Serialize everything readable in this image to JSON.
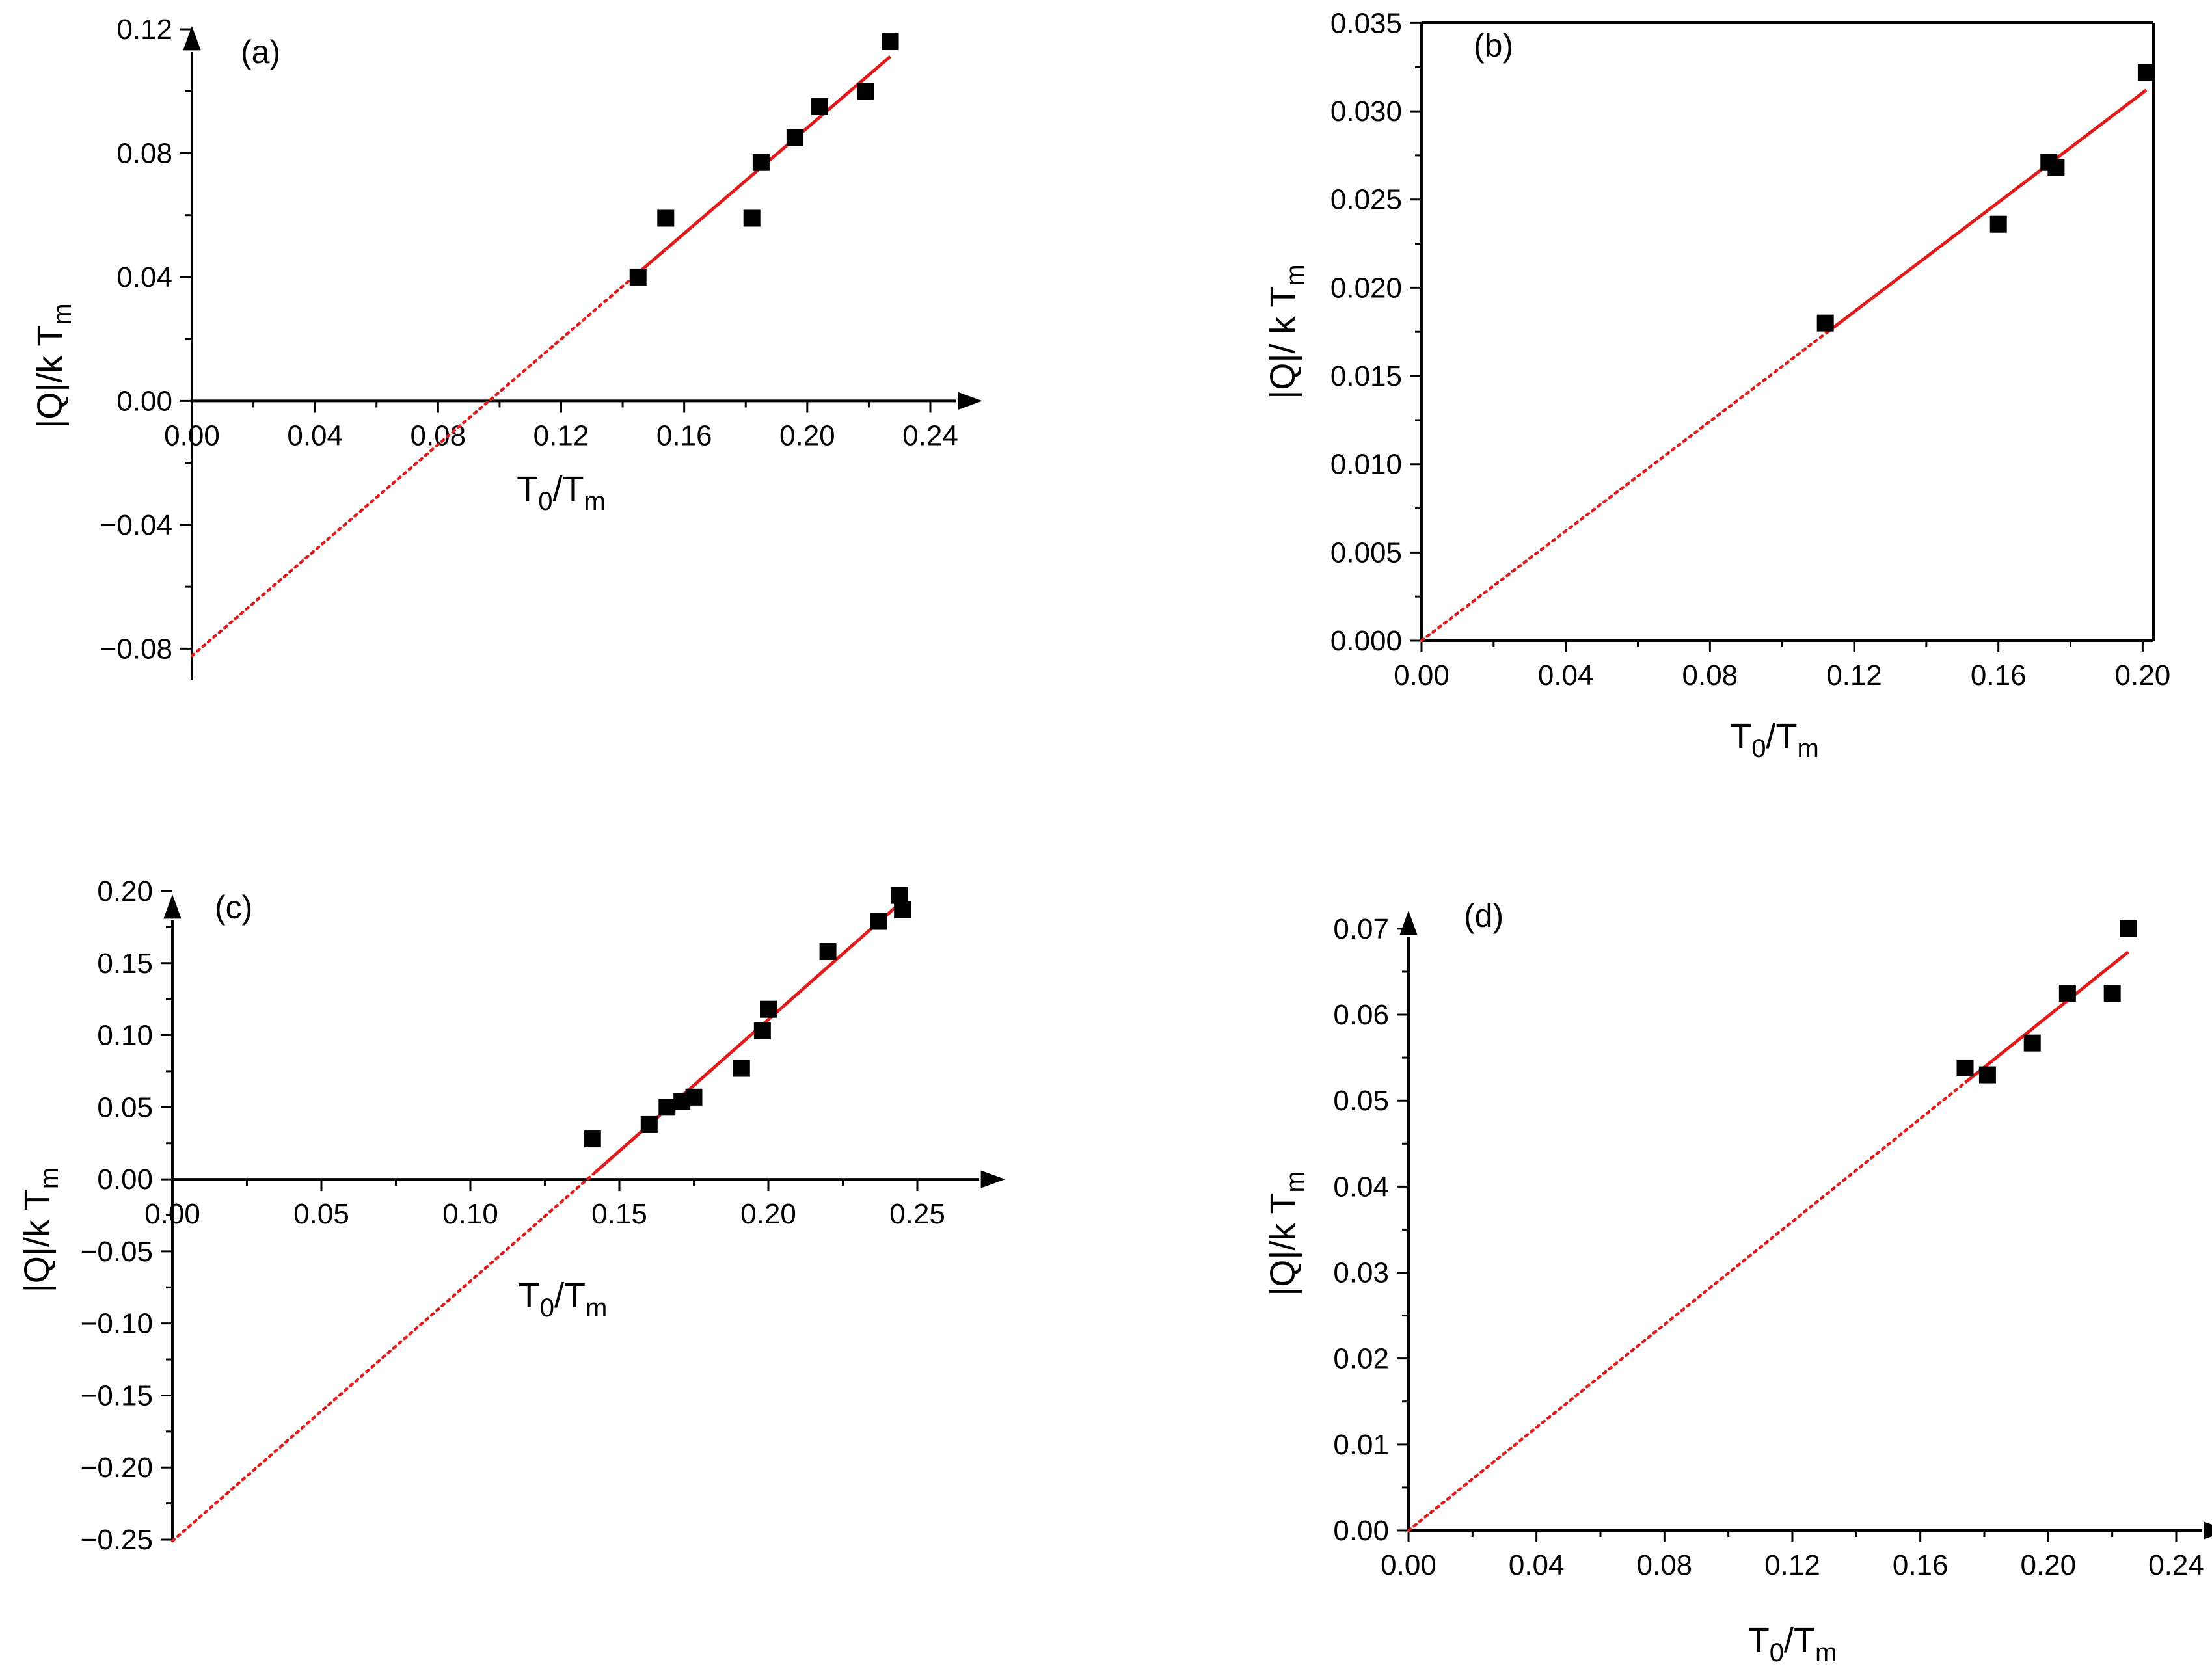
{
  "chart_data": [
    {
      "id": "a",
      "type": "scatter",
      "label": "(a)",
      "xlabel": {
        "main": "T",
        "sub1": "0",
        "mid": "/T",
        "sub2": "m"
      },
      "ylabel": {
        "main": "|Q|/k T",
        "sub": "m"
      },
      "xlim": [
        0,
        0.24
      ],
      "ylim": [
        -0.09,
        0.12
      ],
      "xticks": [
        0.0,
        0.04,
        0.08,
        0.12,
        0.16,
        0.2,
        0.24
      ],
      "xtick_labels": [
        "0.00",
        "0.04",
        "0.08",
        "0.12",
        "0.16",
        "0.20",
        "0.24"
      ],
      "yticks": [
        -0.08,
        -0.04,
        0.0,
        0.04,
        0.08,
        0.12
      ],
      "ytick_labels": [
        "−0.08",
        "−0.04",
        "0.00",
        "0.04",
        "0.08",
        "0.12"
      ],
      "series": [
        {
          "type": "scatter",
          "color": "#000000",
          "x": [
            0.145,
            0.154,
            0.182,
            0.185,
            0.196,
            0.204,
            0.219,
            0.227
          ],
          "y": [
            0.04,
            0.059,
            0.059,
            0.077,
            0.085,
            0.095,
            0.1,
            0.116
          ]
        },
        {
          "type": "line",
          "style": "solid",
          "color": "#e01b1b",
          "x": [
            0.145,
            0.227
          ],
          "y": [
            0.0413,
            0.1112
          ]
        },
        {
          "type": "line",
          "style": "dotted",
          "color": "#e01b1b",
          "x": [
            0.0,
            0.145
          ],
          "y": [
            -0.0823,
            0.0413
          ]
        }
      ]
    },
    {
      "id": "b",
      "type": "scatter",
      "label": "(b)",
      "xlabel": {
        "main": "T",
        "sub1": "0",
        "mid": "/T",
        "sub2": "m"
      },
      "ylabel": {
        "main": "|Q|/ k T",
        "sub": "m"
      },
      "xlim": [
        0,
        0.203
      ],
      "ylim": [
        0,
        0.0352
      ],
      "xticks": [
        0.0,
        0.04,
        0.08,
        0.12,
        0.16,
        0.2
      ],
      "xtick_labels": [
        "0.00",
        "0.04",
        "0.08",
        "0.12",
        "0.16",
        "0.20"
      ],
      "yticks": [
        0.0,
        0.005,
        0.01,
        0.015,
        0.02,
        0.025,
        0.03,
        0.035
      ],
      "ytick_labels": [
        "0.000",
        "0.005",
        "0.010",
        "0.015",
        "0.020",
        "0.025",
        "0.030",
        "0.035"
      ],
      "series": [
        {
          "type": "scatter",
          "color": "#000000",
          "x": [
            0.112,
            0.16,
            0.174,
            0.176,
            0.201
          ],
          "y": [
            0.018,
            0.0236,
            0.0271,
            0.0268,
            0.0322
          ]
        },
        {
          "type": "line",
          "style": "solid",
          "color": "#e01b1b",
          "x": [
            0.112,
            0.201
          ],
          "y": [
            0.0174,
            0.0312
          ]
        },
        {
          "type": "line",
          "style": "dotted",
          "color": "#e01b1b",
          "x": [
            0.0,
            0.112
          ],
          "y": [
            0.0,
            0.0174
          ]
        }
      ]
    },
    {
      "id": "c",
      "type": "scatter",
      "label": "(c)",
      "xlabel": {
        "main": "T",
        "sub1": "0",
        "mid": "/T",
        "sub2": "m"
      },
      "ylabel": {
        "main": "|Q|/k T",
        "sub": "m"
      },
      "xlim": [
        0,
        0.25
      ],
      "ylim": [
        -0.25,
        0.2
      ],
      "xticks": [
        0.0,
        0.05,
        0.1,
        0.15,
        0.2,
        0.25
      ],
      "xtick_labels": [
        "0.00",
        "0.05",
        "0.10",
        "0.15",
        "0.20",
        "0.25"
      ],
      "yticks": [
        -0.25,
        -0.2,
        -0.15,
        -0.1,
        -0.05,
        0.0,
        0.05,
        0.1,
        0.15,
        0.2
      ],
      "ytick_labels": [
        "−0.25",
        "−0.20",
        "−0.15",
        "−0.10",
        "−0.05",
        "0.00",
        "0.05",
        "0.10",
        "0.15",
        "0.20"
      ],
      "series": [
        {
          "type": "scatter",
          "color": "#000000",
          "x": [
            0.141,
            0.16,
            0.166,
            0.171,
            0.175,
            0.191,
            0.198,
            0.2,
            0.22,
            0.237,
            0.244,
            0.245
          ],
          "y": [
            0.028,
            0.038,
            0.05,
            0.054,
            0.057,
            0.077,
            0.103,
            0.118,
            0.158,
            0.179,
            0.197,
            0.187
          ]
        },
        {
          "type": "line",
          "style": "solid",
          "color": "#e01b1b",
          "x": [
            0.142,
            0.245
          ],
          "y": [
            0.005,
            0.193
          ]
        },
        {
          "type": "line",
          "style": "dotted",
          "color": "#e01b1b",
          "x": [
            0.0,
            0.142
          ],
          "y": [
            -0.251,
            0.005
          ]
        }
      ]
    },
    {
      "id": "d",
      "type": "scatter",
      "label": "(d)",
      "xlabel": {
        "main": "T",
        "sub1": "0",
        "mid": "/T",
        "sub2": "m"
      },
      "ylabel": {
        "main": "|Q|/k T",
        "sub": "m"
      },
      "xlim": [
        0,
        0.24
      ],
      "ylim": [
        0,
        0.074
      ],
      "xticks": [
        0.0,
        0.04,
        0.08,
        0.12,
        0.16,
        0.2,
        0.24
      ],
      "xtick_labels": [
        "0.00",
        "0.04",
        "0.08",
        "0.12",
        "0.16",
        "0.20",
        "0.24"
      ],
      "yticks": [
        0.0,
        0.01,
        0.02,
        0.03,
        0.04,
        0.05,
        0.06,
        0.07
      ],
      "ytick_labels": [
        "0.00",
        "0.01",
        "0.02",
        "0.03",
        "0.04",
        "0.05",
        "0.06",
        "0.07"
      ],
      "series": [
        {
          "type": "scatter",
          "color": "#000000",
          "x": [
            0.174,
            0.181,
            0.195,
            0.206,
            0.22,
            0.225
          ],
          "y": [
            0.0538,
            0.053,
            0.0567,
            0.0625,
            0.0625,
            0.07
          ]
        },
        {
          "type": "line",
          "style": "solid",
          "color": "#e01b1b",
          "x": [
            0.174,
            0.225
          ],
          "y": [
            0.0521,
            0.0673
          ]
        },
        {
          "type": "line",
          "style": "dotted",
          "color": "#e01b1b",
          "x": [
            0.0,
            0.174
          ],
          "y": [
            0.0,
            0.0521
          ]
        }
      ]
    }
  ]
}
